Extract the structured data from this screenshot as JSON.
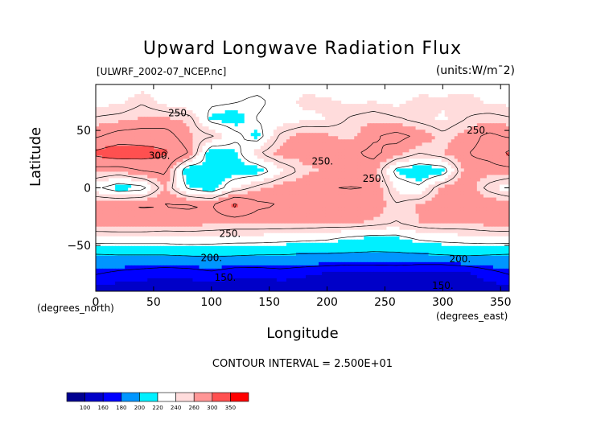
{
  "chart_data": {
    "type": "heatmap",
    "title": "Upward Longwave Radiation Flux",
    "subtitle_left": "[ULWRF_2002-07_NCEP.nc]",
    "subtitle_right": "(units:W/m^2)",
    "xlabel": "Longitude",
    "xlabel_units": "(degrees_east)",
    "ylabel": "Latitude",
    "ylabel_units": "(degrees_north)",
    "xlim": [
      0,
      357.5
    ],
    "ylim": [
      -90,
      90
    ],
    "xticks": [
      0,
      50,
      100,
      150,
      200,
      250,
      300,
      350
    ],
    "yticks": [
      -50,
      0,
      50
    ],
    "contour_interval_text": "CONTOUR INTERVAL = 2.500E+01",
    "contour_labels": [
      {
        "text": "250.",
        "lon": 72,
        "lat": 65
      },
      {
        "text": "300.",
        "lon": 55,
        "lat": 28
      },
      {
        "text": "250.",
        "lon": 196,
        "lat": 23
      },
      {
        "text": "250.",
        "lon": 240,
        "lat": 8
      },
      {
        "text": "250.",
        "lon": 330,
        "lat": 50
      },
      {
        "text": "250.",
        "lon": 116,
        "lat": -40
      },
      {
        "text": "200.",
        "lon": 100,
        "lat": -61
      },
      {
        "text": "200.",
        "lon": 315,
        "lat": -62
      },
      {
        "text": "150.",
        "lon": 112,
        "lat": -78
      },
      {
        "text": "150.",
        "lon": 300,
        "lat": -85
      }
    ],
    "colorbar": {
      "levels": [
        100,
        160,
        180,
        200,
        220,
        240,
        260,
        300,
        350
      ],
      "colors": [
        "#000090",
        "#0000c8",
        "#0000ff",
        "#0096ff",
        "#00f0ff",
        "#ffffff",
        "#ffdcdc",
        "#ff9696",
        "#ff5050",
        "#ff0000"
      ]
    },
    "field": {
      "description_grid": "values in W/m^2 on lon/lat grid",
      "lons": [
        0,
        20,
        40,
        60,
        80,
        100,
        120,
        140,
        160,
        180,
        200,
        220,
        240,
        260,
        280,
        300,
        320,
        340,
        357.5
      ],
      "lats": [
        90,
        75,
        60,
        45,
        30,
        15,
        0,
        -15,
        -30,
        -45,
        -60,
        -75,
        -90
      ],
      "values": [
        [
          232,
          232,
          234,
          234,
          232,
          230,
          230,
          230,
          232,
          234,
          234,
          234,
          232,
          232,
          234,
          234,
          234,
          232,
          232
        ],
        [
          236,
          236,
          248,
          234,
          226,
          228,
          226,
          222,
          230,
          244,
          242,
          238,
          240,
          236,
          244,
          242,
          246,
          238,
          236
        ],
        [
          252,
          256,
          262,
          262,
          258,
          218,
          214,
          226,
          232,
          236,
          240,
          252,
          258,
          252,
          244,
          238,
          250,
          256,
          252
        ],
        [
          272,
          284,
          286,
          286,
          262,
          252,
          230,
          216,
          254,
          268,
          262,
          256,
          272,
          282,
          270,
          254,
          266,
          280,
          272
        ],
        [
          306,
          318,
          312,
          304,
          276,
          206,
          216,
          248,
          266,
          266,
          270,
          272,
          280,
          266,
          250,
          260,
          274,
          282,
          306
        ],
        [
          266,
          262,
          276,
          280,
          204,
          218,
          212,
          212,
          236,
          256,
          262,
          262,
          266,
          218,
          208,
          212,
          268,
          266,
          266
        ],
        [
          230,
          212,
          218,
          262,
          222,
          210,
          238,
          256,
          268,
          272,
          274,
          276,
          274,
          236,
          228,
          264,
          270,
          244,
          230
        ],
        [
          270,
          274,
          276,
          276,
          278,
          274,
          306,
          280,
          274,
          270,
          266,
          262,
          270,
          252,
          262,
          270,
          272,
          272,
          270
        ],
        [
          268,
          270,
          270,
          266,
          266,
          264,
          262,
          262,
          262,
          262,
          260,
          262,
          258,
          250,
          260,
          262,
          262,
          266,
          268
        ],
        [
          234,
          234,
          234,
          234,
          236,
          234,
          232,
          232,
          230,
          228,
          226,
          218,
          214,
          216,
          226,
          230,
          232,
          234,
          234
        ],
        [
          194,
          196,
          196,
          196,
          198,
          200,
          198,
          196,
          196,
          194,
          194,
          194,
          194,
          194,
          194,
          196,
          198,
          196,
          194
        ],
        [
          176,
          170,
          166,
          162,
          164,
          170,
          162,
          162,
          166,
          162,
          158,
          154,
          154,
          156,
          152,
          150,
          156,
          168,
          176
        ],
        [
          150,
          150,
          150,
          150,
          150,
          150,
          150,
          150,
          150,
          150,
          150,
          150,
          150,
          150,
          150,
          150,
          150,
          150,
          150
        ]
      ]
    }
  }
}
